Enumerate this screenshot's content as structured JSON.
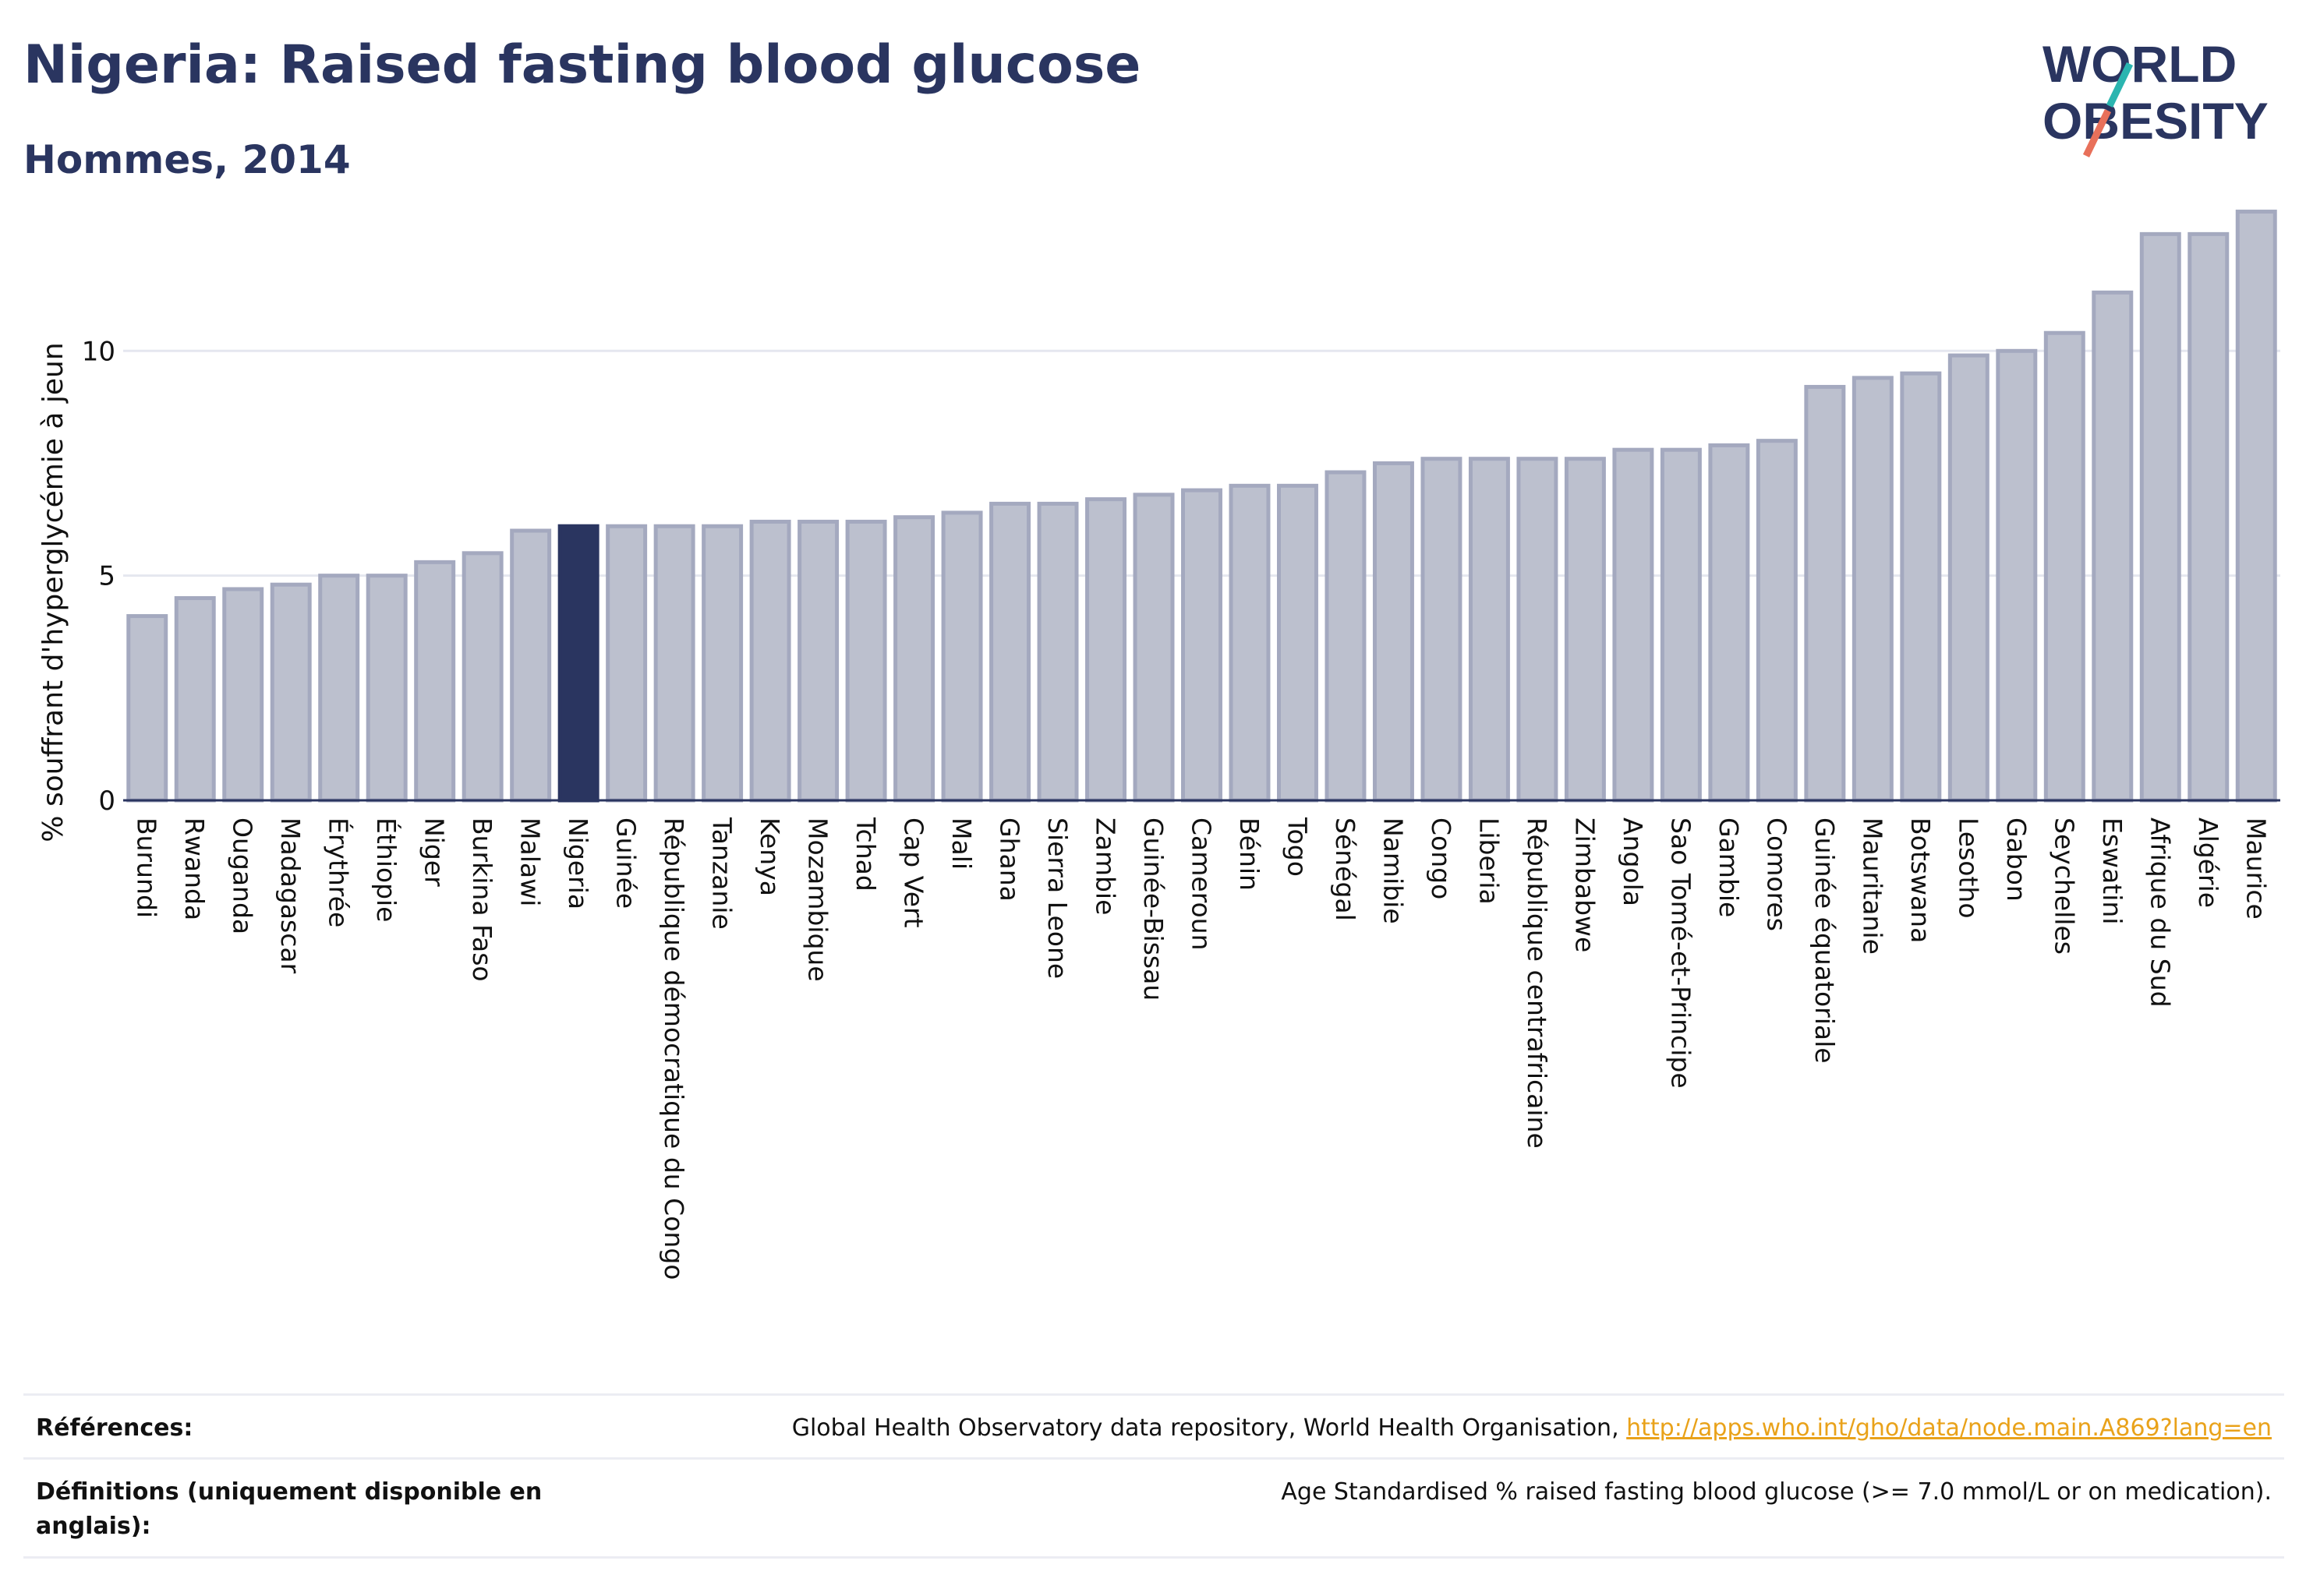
{
  "title": "Nigeria: Raised fasting blood glucose",
  "subtitle": "Hommes, 2014",
  "logo": {
    "line1": "WORLD",
    "line2": "OBESITY",
    "accent_colors": [
      "#2bb5b0",
      "#e8705a"
    ]
  },
  "colors": {
    "bar": "#bcc0ce",
    "bar_border": "#a4a9bf",
    "highlight": "#2a3560",
    "grid": "#e5e7ef",
    "axis": "#2a3560"
  },
  "chart_data": {
    "type": "bar",
    "ylabel": "% souffrant d'hyperglycémie à jeun",
    "ylim": [
      0,
      13.3
    ],
    "yticks": [
      0,
      5,
      10
    ],
    "grid": true,
    "highlight": "Nigeria",
    "categories": [
      "Burundi",
      "Rwanda",
      "Ouganda",
      "Madagascar",
      "Érythrée",
      "Éthiopie",
      "Niger",
      "Burkina Faso",
      "Malawi",
      "Nigeria",
      "Guinée",
      "République démocratique du Congo",
      "Tanzanie",
      "Kenya",
      "Mozambique",
      "Tchad",
      "Cap Vert",
      "Mali",
      "Ghana",
      "Sierra Leone",
      "Zambie",
      "Guinée-Bissau",
      "Cameroun",
      "Bénin",
      "Togo",
      "Sénégal",
      "Namibie",
      "Congo",
      "Liberia",
      "République centrafricaine",
      "Zimbabwe",
      "Angola",
      "Sao Tomé-et-Principe",
      "Gambie",
      "Comores",
      "Guinée équatoriale",
      "Mauritanie",
      "Botswana",
      "Lesotho",
      "Gabon",
      "Seychelles",
      "Eswatini",
      "Afrique du Sud",
      "Algérie",
      "Maurice"
    ],
    "values": [
      4.1,
      4.5,
      4.7,
      4.8,
      5.0,
      5.0,
      5.3,
      5.5,
      6.0,
      6.1,
      6.1,
      6.1,
      6.1,
      6.2,
      6.2,
      6.2,
      6.3,
      6.4,
      6.6,
      6.6,
      6.7,
      6.8,
      6.9,
      7.0,
      7.0,
      7.3,
      7.5,
      7.6,
      7.6,
      7.6,
      7.6,
      7.8,
      7.8,
      7.9,
      8.0,
      9.2,
      9.4,
      9.5,
      9.9,
      10.0,
      10.4,
      11.3,
      12.6,
      12.6,
      13.1
    ]
  },
  "footer": {
    "references_label": "Références:",
    "references_text": "Global Health Observatory data repository, World Health Organisation, ",
    "references_link": "http://apps.who.int/gho/data/node.main.A869?lang=en",
    "definitions_label": "Définitions (uniquement disponible en anglais):",
    "definitions_text": "Age Standardised % raised fasting blood glucose (>= 7.0 mmol/L or on medication)."
  }
}
